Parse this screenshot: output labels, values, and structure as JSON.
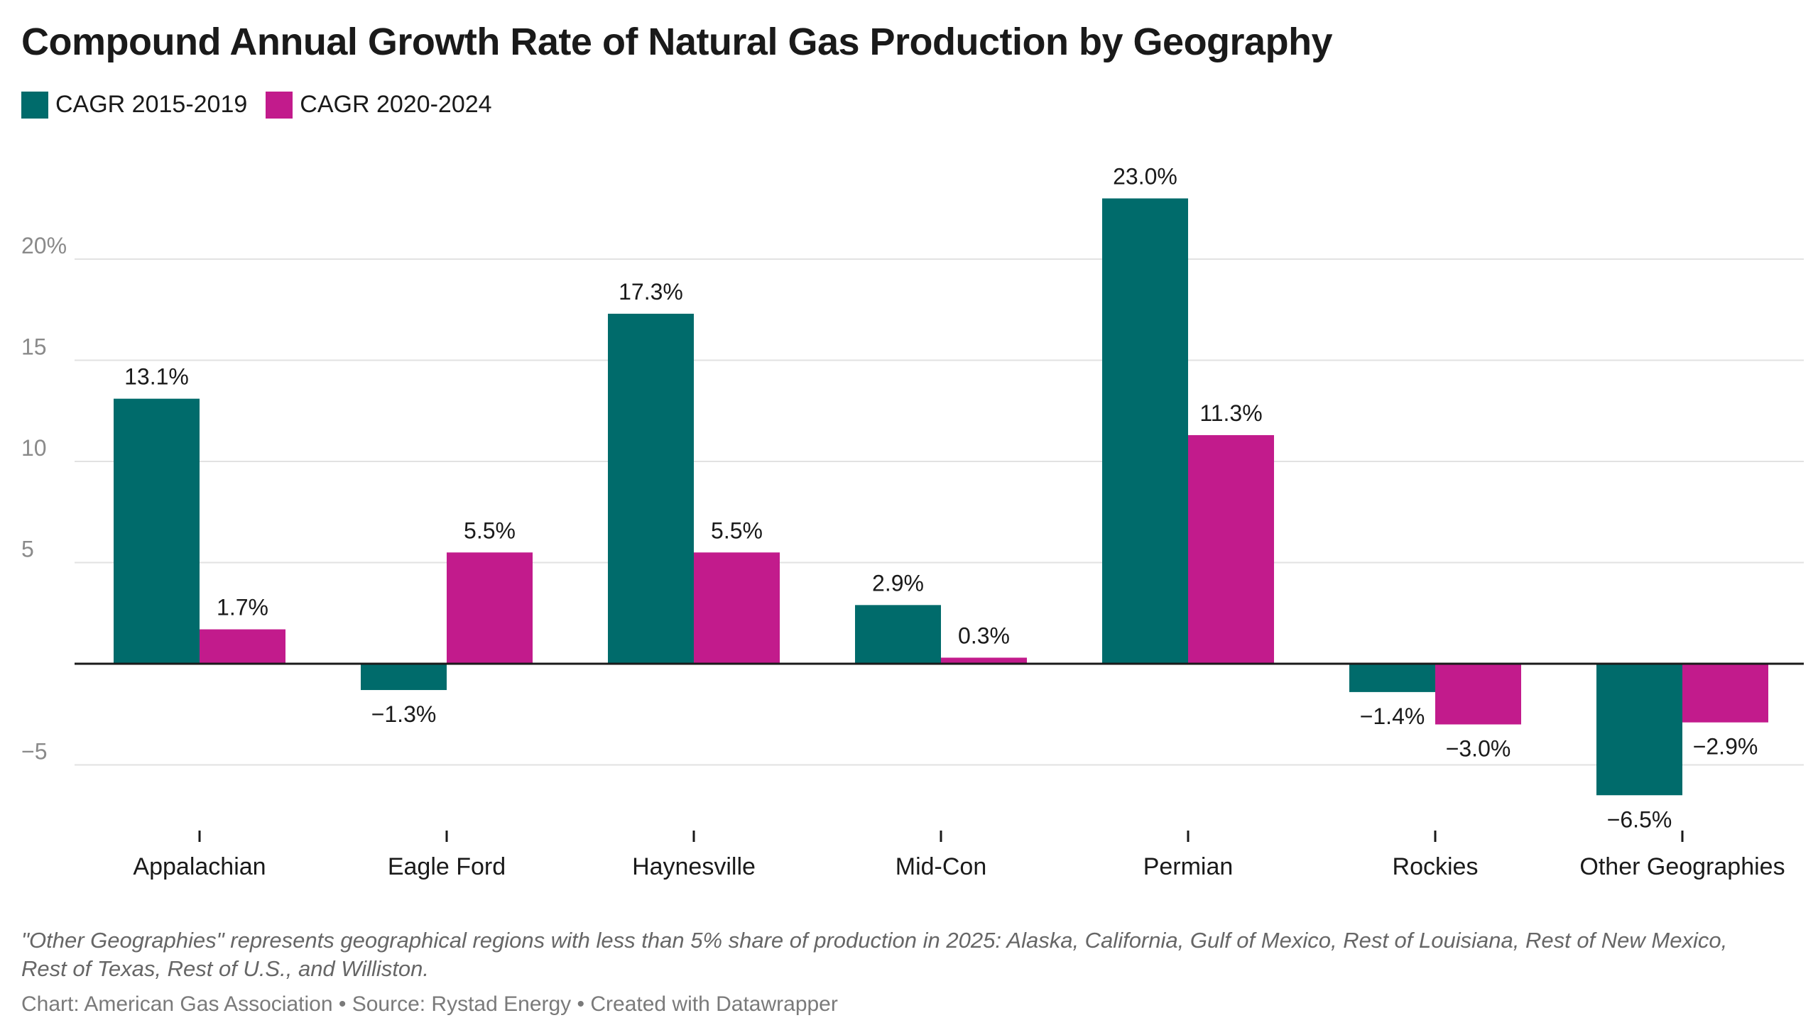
{
  "title": "Compound Annual Growth Rate of Natural Gas Production by Geography",
  "footnote": "\"Other Geographies\" represents geographical regions with less than 5% share of production in 2025: Alaska, California, Gulf of Mexico, Rest of Louisiana, Rest of New Mexico, Rest of Texas, Rest of U.S., and Williston.",
  "credit": "Chart: American Gas Association • Source: Rystad Energy • Created with Datawrapper",
  "colors": {
    "series1": "#006b6b",
    "series2": "#c21b8c",
    "gridline": "#e2e2e2",
    "baseline": "#1a1a1a"
  },
  "chart_data": {
    "type": "bar",
    "title": "Compound Annual Growth Rate of Natural Gas Production by Geography",
    "xlabel": "",
    "ylabel": "",
    "categories": [
      "Appalachian",
      "Eagle Ford",
      "Haynesville",
      "Mid-Con",
      "Permian",
      "Rockies",
      "Other Geographies"
    ],
    "series": [
      {
        "name": "CAGR 2015-2019",
        "values": [
          13.1,
          -1.3,
          17.3,
          2.9,
          23.0,
          -1.4,
          -6.5
        ],
        "labels": [
          "13.1%",
          "−1.3%",
          "17.3%",
          "2.9%",
          "23.0%",
          "−1.4%",
          "−6.5%"
        ]
      },
      {
        "name": "CAGR 2020-2024",
        "values": [
          1.7,
          5.5,
          5.5,
          0.3,
          11.3,
          -3.0,
          -2.9
        ],
        "labels": [
          "1.7%",
          "5.5%",
          "5.5%",
          "0.3%",
          "11.3%",
          "−3.0%",
          "−2.9%"
        ]
      }
    ],
    "yticks": [
      20,
      15,
      10,
      5,
      -5
    ],
    "ytick_labels": [
      "20%",
      "15",
      "10",
      "5",
      "−5"
    ],
    "ylim": [
      -8.5,
      23.5
    ],
    "grid": true,
    "legend": "top-left"
  }
}
